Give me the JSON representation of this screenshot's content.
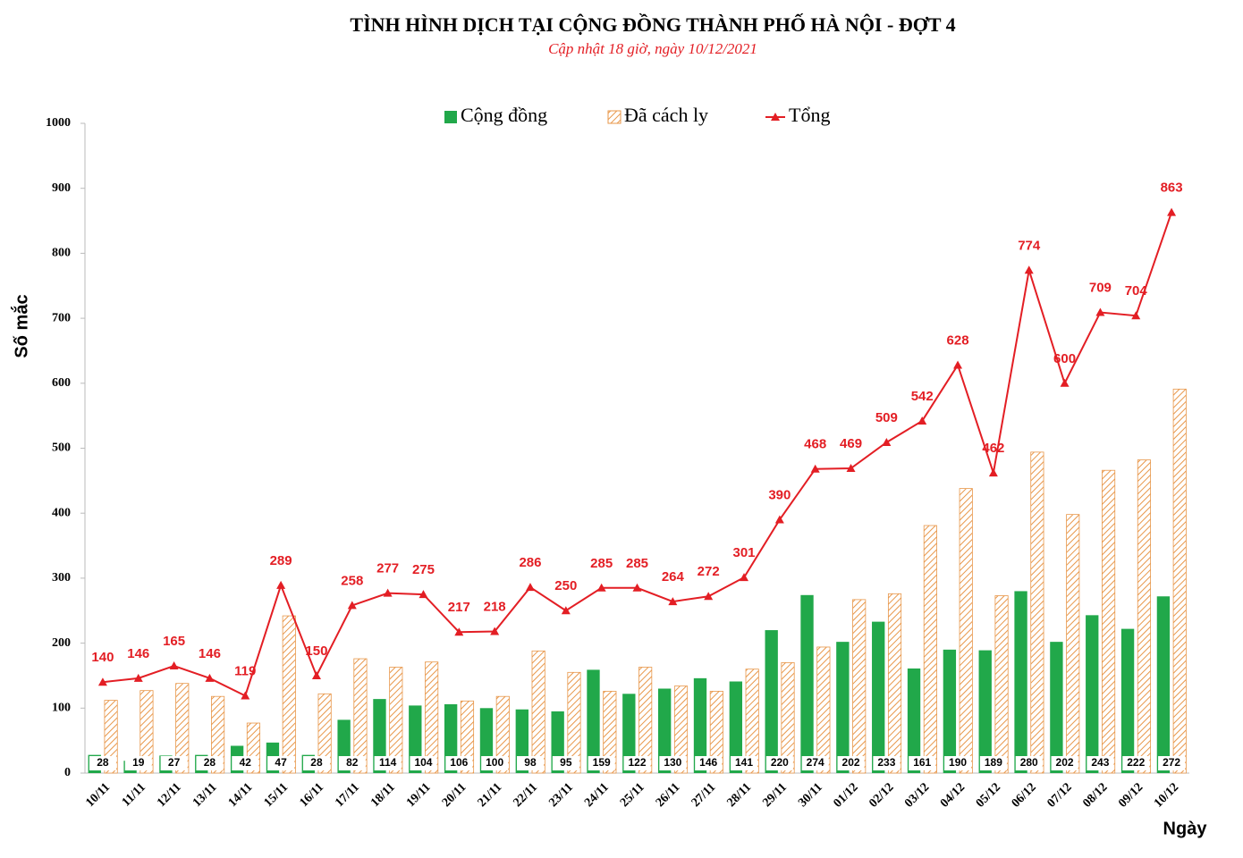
{
  "chart_data": {
    "type": "bar",
    "title": "TÌNH HÌNH DỊCH TẠI CỘNG ĐỒNG THÀNH PHỐ HÀ NỘI - ĐỢT 4",
    "subtitle": "Cập nhật 18 giờ, ngày 10/12/2021",
    "y_label": "Số mắc",
    "x_label": "Ngày",
    "categories": [
      "10/11",
      "11/11",
      "12/11",
      "13/11",
      "14/11",
      "15/11",
      "16/11",
      "17/11",
      "18/11",
      "19/11",
      "20/11",
      "21/11",
      "22/11",
      "23/11",
      "24/11",
      "25/11",
      "26/11",
      "27/11",
      "28/11",
      "29/11",
      "30/11",
      "01/12",
      "02/12",
      "03/12",
      "04/12",
      "05/12",
      "06/12",
      "07/12",
      "08/12",
      "09/12",
      "10/12"
    ],
    "series": [
      {
        "name": "Cộng đồng",
        "type": "bar",
        "color": "#21a84a",
        "label_position": "bottom",
        "values": [
          28,
          19,
          27,
          28,
          42,
          47,
          28,
          82,
          114,
          104,
          106,
          100,
          98,
          95,
          159,
          122,
          130,
          146,
          141,
          220,
          274,
          202,
          233,
          161,
          190,
          189,
          280,
          202,
          243,
          222,
          272
        ]
      },
      {
        "name": "Đã cách ly",
        "type": "bar",
        "color": "#e8974a",
        "pattern": "hatch",
        "values": [
          112,
          127,
          138,
          118,
          77,
          242,
          122,
          176,
          163,
          171,
          111,
          118,
          188,
          155,
          126,
          163,
          134,
          126,
          160,
          170,
          194,
          267,
          276,
          381,
          438,
          273,
          494,
          398,
          466,
          482,
          591
        ]
      },
      {
        "name": "Tổng",
        "type": "line",
        "color": "#e31e24",
        "label_position": "above",
        "values": [
          140,
          146,
          165,
          146,
          119,
          289,
          150,
          258,
          277,
          275,
          217,
          218,
          286,
          250,
          285,
          285,
          264,
          272,
          301,
          390,
          468,
          469,
          509,
          542,
          628,
          462,
          774,
          600,
          709,
          704,
          863
        ]
      }
    ],
    "ylim": [
      0,
      1000
    ],
    "yticks": [
      0,
      100,
      200,
      300,
      400,
      500,
      600,
      700,
      800,
      900,
      1000
    ],
    "grid": false
  }
}
